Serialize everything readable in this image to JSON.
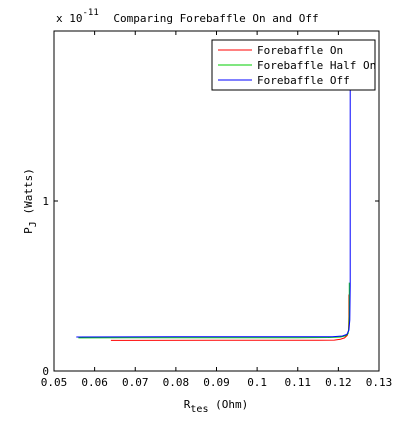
{
  "chart_data": {
    "type": "line",
    "title": "Comparing Forebaffle On and Off",
    "xlabel": {
      "main": "R",
      "sub": "tes",
      "unit": " (Ohm)"
    },
    "ylabel": {
      "main": "P",
      "sub": "J",
      "unit": " (Watts)"
    },
    "exponent": {
      "base": "x 10",
      "power": "-11"
    },
    "xlim": [
      0.05,
      0.13
    ],
    "ylim": [
      0,
      2.0
    ],
    "y_scale_factor": 1e-11,
    "xticks": [
      0.05,
      0.06,
      0.07,
      0.08,
      0.09,
      0.1,
      0.11,
      0.12,
      0.13
    ],
    "xtick_labels": [
      "0.05",
      "0.06",
      "0.07",
      "0.08",
      "0.09",
      "0.1",
      "0.11",
      "0.12",
      "0.13"
    ],
    "yticks": [
      0,
      1
    ],
    "ytick_labels": [
      "0",
      "1"
    ],
    "legend_position": "top-right",
    "series": [
      {
        "name": "Forebaffle On",
        "color": "#ff0000",
        "x": [
          0.064,
          0.09,
          0.115,
          0.119,
          0.1205,
          0.1215,
          0.1222,
          0.1225,
          0.1226,
          0.1226
        ],
        "y": [
          0.18,
          0.181,
          0.181,
          0.182,
          0.187,
          0.195,
          0.21,
          0.24,
          0.32,
          0.45
        ]
      },
      {
        "name": "Forebaffle Half On",
        "color": "#00cc00",
        "x": [
          0.056,
          0.08,
          0.11,
          0.1175,
          0.1205,
          0.1218,
          0.1224,
          0.1226,
          0.1227,
          0.1227,
          0.1227
        ],
        "y": [
          0.195,
          0.196,
          0.196,
          0.197,
          0.2,
          0.207,
          0.22,
          0.26,
          0.33,
          0.45,
          0.52
        ]
      },
      {
        "name": "Forebaffle Off",
        "color": "#0000ff",
        "x": [
          0.0555,
          0.08,
          0.11,
          0.1185,
          0.121,
          0.1221,
          0.1226,
          0.1228,
          0.1229,
          0.1229,
          0.1229
        ],
        "y": [
          0.2,
          0.201,
          0.201,
          0.202,
          0.206,
          0.215,
          0.24,
          0.3,
          0.5,
          1.2,
          1.72
        ]
      }
    ]
  }
}
